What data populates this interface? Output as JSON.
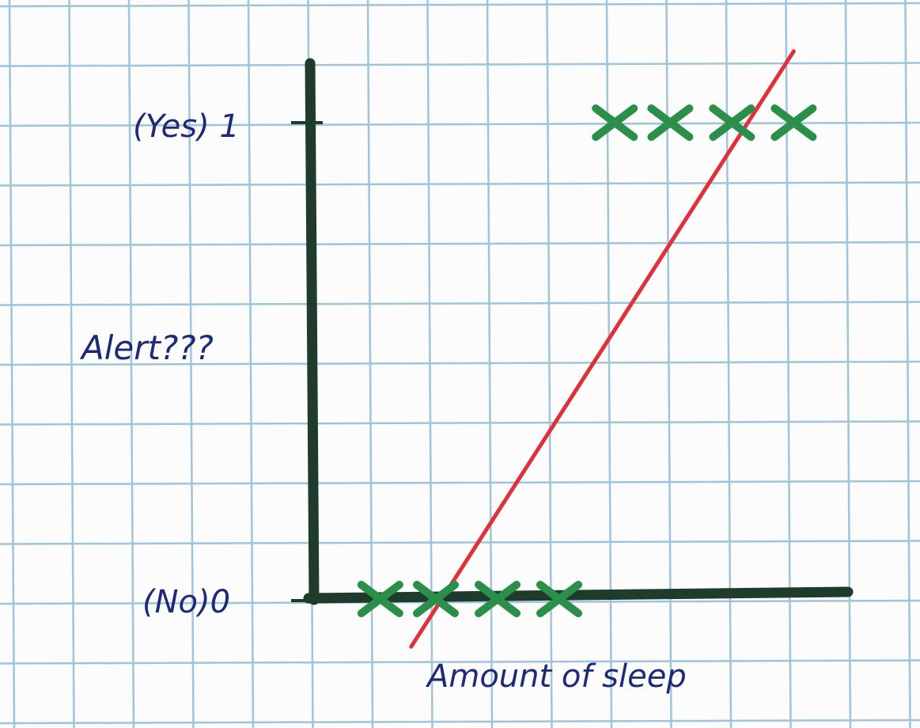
{
  "chart_data": {
    "type": "scatter",
    "title": "",
    "xlabel": "Amount of sleep",
    "ylabel": "Alert???",
    "yticks": [
      {
        "value": 1,
        "label": "(Yes) 1"
      },
      {
        "value": 0,
        "label": "(No)0"
      }
    ],
    "ylim": [
      0,
      1
    ],
    "grid": true,
    "series": [
      {
        "values_y0": [
          {
            "x": 1.1,
            "y": 0
          },
          {
            "x": 2.0,
            "y": 0
          },
          {
            "x": 3.0,
            "y": 0
          },
          {
            "x": 4.0,
            "y": 0
          }
        ],
        "values_y1": [
          {
            "x": 4.9,
            "y": 1
          },
          {
            "x": 5.8,
            "y": 1
          },
          {
            "x": 6.8,
            "y": 1
          },
          {
            "x": 7.8,
            "y": 1
          }
        ]
      }
    ],
    "fit_line": {
      "x0": 1.6,
      "y0": -0.1,
      "x1": 7.8,
      "y1": 1.15
    },
    "colors": {
      "grid": "#9fc4dc",
      "axes": "#1f3b2c",
      "points": "#2b8f4a",
      "fit_line": "#e0303a",
      "labels": "#1c2a78"
    }
  }
}
